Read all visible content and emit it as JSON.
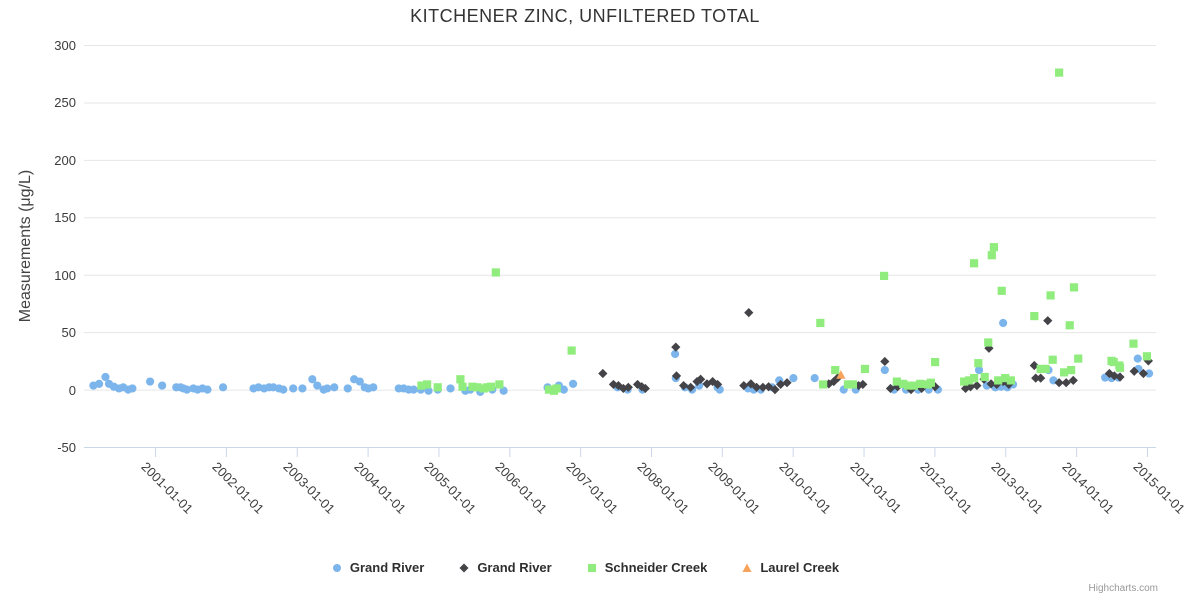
{
  "credits": "Highcharts.com",
  "chart_data": {
    "type": "scatter",
    "title": "KITCHENER ZINC, UNFILTERED TOTAL",
    "xlabel": "",
    "ylabel": "Measurements (μg/L)",
    "ylim": [
      -50,
      300
    ],
    "yticks": [
      -50,
      0,
      50,
      100,
      150,
      200,
      250,
      300
    ],
    "xticks": [
      "2001-01-01",
      "2002-01-01",
      "2003-01-01",
      "2004-01-01",
      "2005-01-01",
      "2006-01-01",
      "2007-01-01",
      "2008-01-01",
      "2009-01-01",
      "2010-01-01",
      "2011-01-01",
      "2012-01-01",
      "2013-01-01",
      "2014-01-01",
      "2015-01-01"
    ],
    "grid": true,
    "legend_position": "bottom",
    "series": [
      {
        "name": "Grand River",
        "marker": "circle",
        "color": "#7cb5ec",
        "points": [
          [
            2000.13,
            3.5
          ],
          [
            2000.21,
            5
          ],
          [
            2000.3,
            11
          ],
          [
            2000.35,
            5
          ],
          [
            2000.42,
            2.5
          ],
          [
            2000.49,
            1
          ],
          [
            2000.55,
            2
          ],
          [
            2000.62,
            0
          ],
          [
            2000.68,
            1
          ],
          [
            2000.93,
            7
          ],
          [
            2001.1,
            3.5
          ],
          [
            2001.3,
            2
          ],
          [
            2001.36,
            2
          ],
          [
            2001.4,
            1
          ],
          [
            2001.45,
            0
          ],
          [
            2001.54,
            1
          ],
          [
            2001.6,
            0
          ],
          [
            2001.67,
            1
          ],
          [
            2001.74,
            0
          ],
          [
            2001.96,
            2
          ],
          [
            2002.39,
            1
          ],
          [
            2002.46,
            2
          ],
          [
            2002.54,
            1
          ],
          [
            2002.61,
            2
          ],
          [
            2002.67,
            2
          ],
          [
            2002.75,
            1
          ],
          [
            2002.81,
            0
          ],
          [
            2002.95,
            1
          ],
          [
            2003.08,
            1
          ],
          [
            2003.22,
            9
          ],
          [
            2003.29,
            3.5
          ],
          [
            2003.38,
            0
          ],
          [
            2003.43,
            1
          ],
          [
            2003.53,
            2
          ],
          [
            2003.72,
            1
          ],
          [
            2003.81,
            9
          ],
          [
            2003.89,
            7
          ],
          [
            2003.96,
            2
          ],
          [
            2004.01,
            1
          ],
          [
            2004.08,
            2
          ],
          [
            2004.44,
            1
          ],
          [
            2004.51,
            1
          ],
          [
            2004.58,
            0
          ],
          [
            2004.65,
            0
          ],
          [
            2004.75,
            0
          ],
          [
            2004.86,
            -1
          ],
          [
            2004.99,
            0
          ],
          [
            2005.17,
            1
          ],
          [
            2005.38,
            -1
          ],
          [
            2005.45,
            0
          ],
          [
            2005.59,
            -2
          ],
          [
            2005.76,
            0
          ],
          [
            2005.92,
            -1
          ],
          [
            2006.54,
            2
          ],
          [
            2006.7,
            3.5
          ],
          [
            2006.77,
            0
          ],
          [
            2006.9,
            5
          ],
          [
            2007.53,
            2
          ],
          [
            2007.67,
            0
          ],
          [
            2007.88,
            0
          ],
          [
            2008.34,
            31
          ],
          [
            2008.35,
            10
          ],
          [
            2008.48,
            2
          ],
          [
            2008.58,
            0
          ],
          [
            2008.68,
            3.5
          ],
          [
            2008.94,
            2
          ],
          [
            2008.97,
            0
          ],
          [
            2009.37,
            1
          ],
          [
            2009.45,
            0
          ],
          [
            2009.55,
            0
          ],
          [
            2009.71,
            2
          ],
          [
            2009.81,
            8
          ],
          [
            2010.01,
            10
          ],
          [
            2010.31,
            10
          ],
          [
            2010.72,
            0
          ],
          [
            2010.89,
            0
          ],
          [
            2011.3,
            17
          ],
          [
            2011.43,
            0
          ],
          [
            2011.6,
            0
          ],
          [
            2011.77,
            0
          ],
          [
            2011.92,
            0
          ],
          [
            2012.05,
            0
          ],
          [
            2012.63,
            17
          ],
          [
            2012.74,
            3.5
          ],
          [
            2012.86,
            2
          ],
          [
            2012.94,
            2.5
          ],
          [
            2012.97,
            58
          ],
          [
            2013.03,
            2
          ],
          [
            2013.11,
            4.5
          ],
          [
            2013.61,
            17
          ],
          [
            2013.68,
            8
          ],
          [
            2014.41,
            10.5
          ],
          [
            2014.5,
            10
          ],
          [
            2014.6,
            10.5
          ],
          [
            2014.87,
            27
          ],
          [
            2014.88,
            18
          ],
          [
            2015.03,
            14
          ]
        ]
      },
      {
        "name": "Grand River",
        "marker": "diamond",
        "color": "#434348",
        "points": [
          [
            2007.32,
            14
          ],
          [
            2007.47,
            4.5
          ],
          [
            2007.54,
            3.5
          ],
          [
            2007.61,
            1
          ],
          [
            2007.68,
            2
          ],
          [
            2007.81,
            4.5
          ],
          [
            2007.87,
            2.5
          ],
          [
            2007.92,
            1
          ],
          [
            2008.35,
            37
          ],
          [
            2008.36,
            12
          ],
          [
            2008.46,
            3.5
          ],
          [
            2008.56,
            2
          ],
          [
            2008.65,
            7
          ],
          [
            2008.7,
            9
          ],
          [
            2008.79,
            5
          ],
          [
            2008.87,
            7
          ],
          [
            2008.94,
            4.5
          ],
          [
            2009.31,
            3.5
          ],
          [
            2009.38,
            67
          ],
          [
            2009.41,
            5
          ],
          [
            2009.49,
            2
          ],
          [
            2009.58,
            2
          ],
          [
            2009.66,
            2.5
          ],
          [
            2009.75,
            0
          ],
          [
            2009.83,
            4.5
          ],
          [
            2009.92,
            6
          ],
          [
            2010.51,
            5
          ],
          [
            2010.58,
            7
          ],
          [
            2010.64,
            10.5
          ],
          [
            2010.93,
            3.5
          ],
          [
            2010.99,
            4.5
          ],
          [
            2011.3,
            24.5
          ],
          [
            2011.38,
            1
          ],
          [
            2011.48,
            2.5
          ],
          [
            2011.67,
            0
          ],
          [
            2011.82,
            1
          ],
          [
            2012.01,
            2.5
          ],
          [
            2012.44,
            1
          ],
          [
            2012.51,
            2.5
          ],
          [
            2012.6,
            3.5
          ],
          [
            2012.7,
            9
          ],
          [
            2012.77,
            36
          ],
          [
            2012.8,
            5
          ],
          [
            2012.88,
            4.5
          ],
          [
            2012.97,
            7
          ],
          [
            2013.05,
            4.5
          ],
          [
            2013.41,
            21
          ],
          [
            2013.43,
            10
          ],
          [
            2013.5,
            10
          ],
          [
            2013.6,
            60
          ],
          [
            2013.76,
            6
          ],
          [
            2013.86,
            6
          ],
          [
            2013.96,
            8
          ],
          [
            2014.47,
            14
          ],
          [
            2014.54,
            12
          ],
          [
            2014.62,
            11
          ],
          [
            2014.82,
            16
          ],
          [
            2014.95,
            14
          ],
          [
            2015.02,
            25
          ]
        ]
      },
      {
        "name": "Schneider Creek",
        "marker": "square",
        "color": "#90ed7d",
        "points": [
          [
            2004.76,
            3.5
          ],
          [
            2004.84,
            4.5
          ],
          [
            2004.99,
            2
          ],
          [
            2005.31,
            9
          ],
          [
            2005.34,
            2.5
          ],
          [
            2005.48,
            2.5
          ],
          [
            2005.55,
            2
          ],
          [
            2005.64,
            1
          ],
          [
            2005.69,
            2
          ],
          [
            2005.74,
            2.5
          ],
          [
            2005.81,
            102
          ],
          [
            2005.86,
            4.5
          ],
          [
            2006.56,
            0
          ],
          [
            2006.63,
            -1
          ],
          [
            2006.67,
            1
          ],
          [
            2006.88,
            34
          ],
          [
            2010.39,
            58
          ],
          [
            2010.43,
            4.5
          ],
          [
            2010.6,
            17
          ],
          [
            2010.78,
            4.5
          ],
          [
            2010.85,
            4.5
          ],
          [
            2011.02,
            18
          ],
          [
            2011.29,
            99
          ],
          [
            2011.47,
            7
          ],
          [
            2011.56,
            5
          ],
          [
            2011.63,
            3.5
          ],
          [
            2011.71,
            3.5
          ],
          [
            2011.8,
            5
          ],
          [
            2011.91,
            4.5
          ],
          [
            2011.95,
            6
          ],
          [
            2012.01,
            24
          ],
          [
            2012.42,
            7
          ],
          [
            2012.49,
            8
          ],
          [
            2012.56,
            10
          ],
          [
            2012.56,
            110
          ],
          [
            2012.62,
            23
          ],
          [
            2012.71,
            11
          ],
          [
            2012.76,
            41
          ],
          [
            2012.81,
            117
          ],
          [
            2012.84,
            124
          ],
          [
            2012.9,
            8
          ],
          [
            2012.95,
            86
          ],
          [
            2013.0,
            10
          ],
          [
            2013.08,
            8
          ],
          [
            2013.41,
            64
          ],
          [
            2013.5,
            18
          ],
          [
            2013.57,
            18
          ],
          [
            2013.64,
            82
          ],
          [
            2013.67,
            26
          ],
          [
            2013.76,
            276
          ],
          [
            2013.83,
            15
          ],
          [
            2013.91,
            56
          ],
          [
            2013.93,
            17
          ],
          [
            2013.97,
            89
          ],
          [
            2014.03,
            27
          ],
          [
            2014.5,
            25
          ],
          [
            2014.53,
            24
          ],
          [
            2014.61,
            21
          ],
          [
            2014.62,
            19
          ],
          [
            2014.81,
            40
          ],
          [
            2015.0,
            29
          ]
        ]
      },
      {
        "name": "Laurel Creek",
        "marker": "triangle",
        "color": "#f7a35c",
        "points": [
          [
            2010.68,
            13
          ]
        ]
      }
    ]
  },
  "colors": {
    "gridline": "#e6e6e6",
    "axis_line": "#ccd6eb",
    "title_text": "#333333",
    "tick_text": "#3c3c3c",
    "legend_text": "#2f2f2f",
    "credits_text": "#999999"
  }
}
